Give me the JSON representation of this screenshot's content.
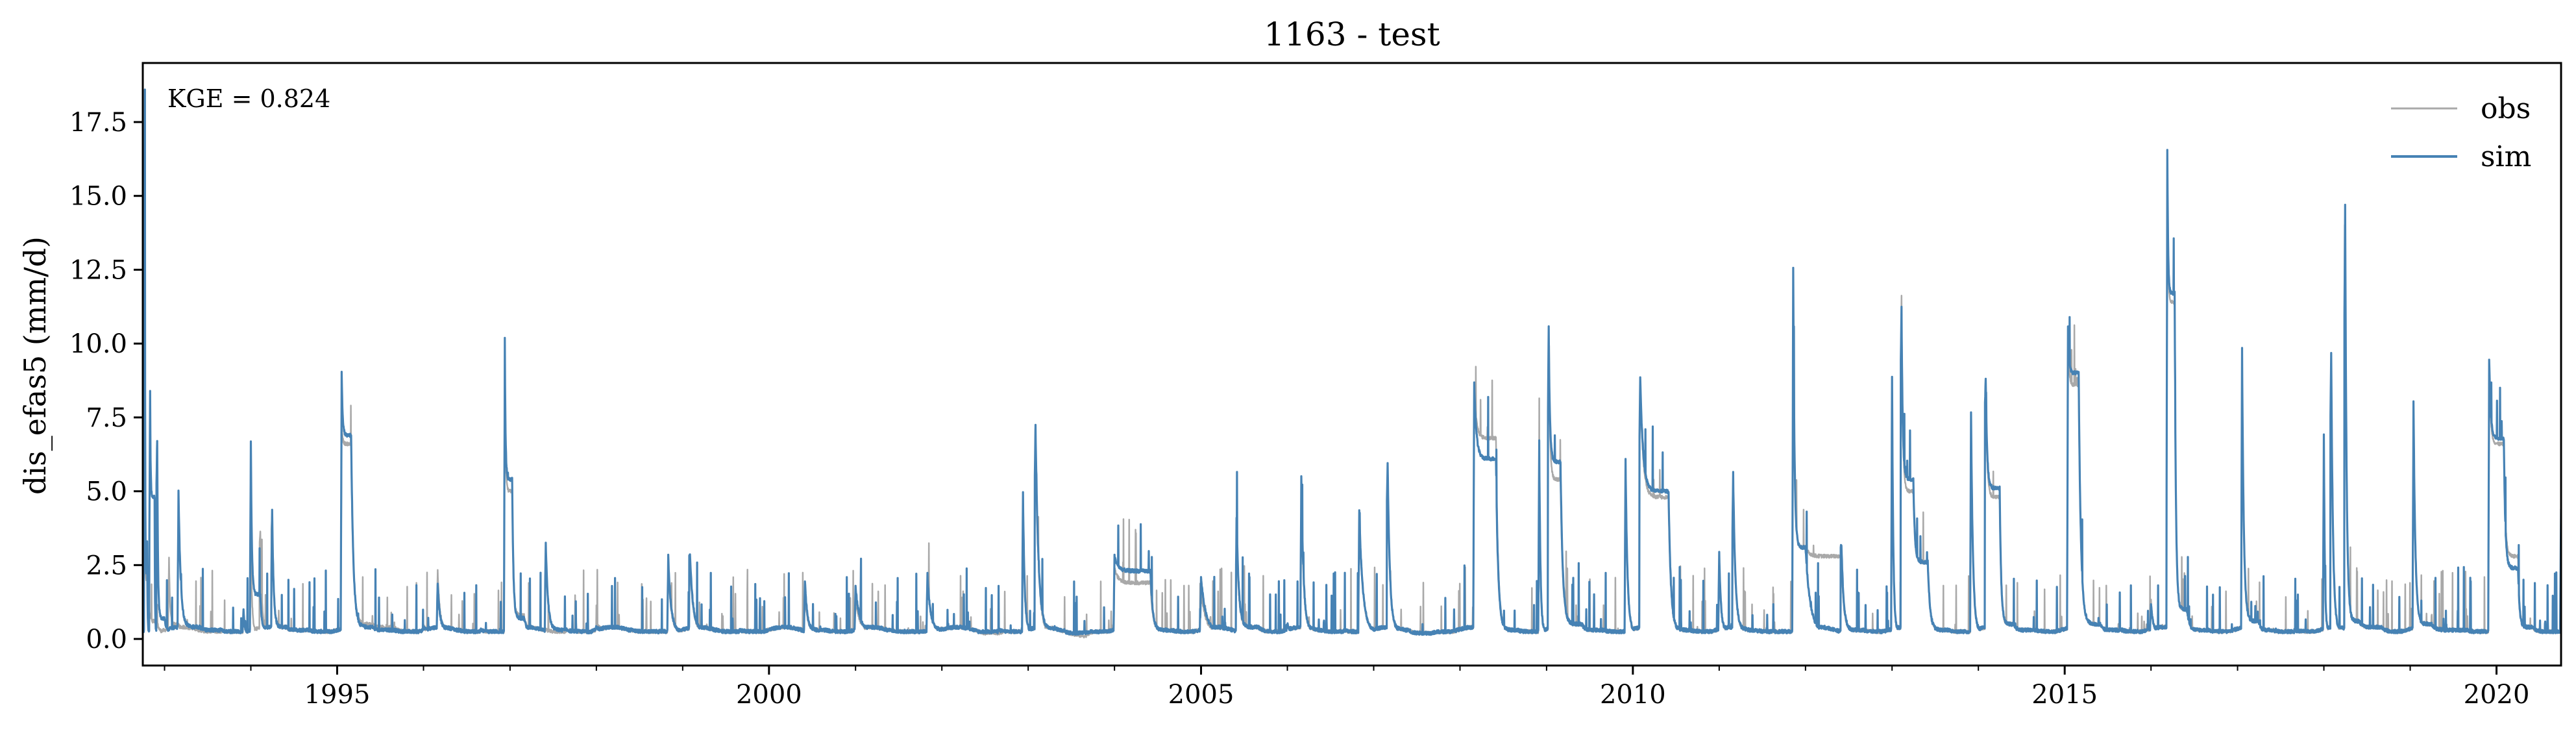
{
  "chart_data": {
    "type": "line",
    "title": "1163 - test",
    "xlabel": "",
    "ylabel": "dis_efas5 (mm/d)",
    "xlim": [
      "1992-10-01",
      "2020-09-30"
    ],
    "ylim": [
      -0.9,
      19.5
    ],
    "x_ticks": [
      {
        "date": "1995-01-01",
        "label": "1995"
      },
      {
        "date": "2000-01-01",
        "label": "2000"
      },
      {
        "date": "2005-01-01",
        "label": "2005"
      },
      {
        "date": "2010-01-01",
        "label": "2010"
      },
      {
        "date": "2015-01-01",
        "label": "2015"
      },
      {
        "date": "2020-01-01",
        "label": "2020"
      }
    ],
    "y_ticks": [
      {
        "value": 0.0,
        "label": "0.0"
      },
      {
        "value": 2.5,
        "label": "2.5"
      },
      {
        "value": 5.0,
        "label": "5.0"
      },
      {
        "value": 7.5,
        "label": "7.5"
      },
      {
        "value": 10.0,
        "label": "10.0"
      },
      {
        "value": 12.5,
        "label": "12.5"
      },
      {
        "value": 15.0,
        "label": "15.0"
      },
      {
        "value": 17.5,
        "label": "17.5"
      }
    ],
    "annotation": "KGE = 0.824",
    "legend_position": "top-right",
    "grid": false,
    "series": [
      {
        "name": "obs",
        "color": "#a9a9a9",
        "points": [
          [
            "1992-10-01",
            1.8
          ],
          [
            "1992-10-10",
            11.0
          ],
          [
            "1992-10-20",
            2.0
          ],
          [
            "1992-11-01",
            0.9
          ],
          [
            "1992-12-01",
            0.6
          ],
          [
            "1993-01-20",
            2.7
          ],
          [
            "1993-03-01",
            0.5
          ],
          [
            "1993-06-01",
            0.3
          ],
          [
            "1993-09-01",
            0.3
          ],
          [
            "1993-12-01",
            0.8
          ],
          [
            "1994-01-01",
            3.2
          ],
          [
            "1994-02-10",
            3.6
          ],
          [
            "1994-04-01",
            4.2
          ],
          [
            "1994-06-01",
            0.4
          ],
          [
            "1994-09-01",
            0.3
          ],
          [
            "1995-01-20",
            7.2
          ],
          [
            "1995-03-01",
            6.6
          ],
          [
            "1995-06-01",
            0.5
          ],
          [
            "1995-09-01",
            0.4
          ],
          [
            "1996-01-01",
            0.5
          ],
          [
            "1996-03-01",
            2.3
          ],
          [
            "1996-06-01",
            0.3
          ],
          [
            "1996-09-01",
            0.3
          ],
          [
            "1996-12-10",
            9.5
          ],
          [
            "1997-01-10",
            5.0
          ],
          [
            "1997-03-01",
            0.8
          ],
          [
            "1997-06-01",
            0.3
          ],
          [
            "1997-09-01",
            0.3
          ],
          [
            "1998-01-01",
            0.5
          ],
          [
            "1998-06-01",
            0.3
          ],
          [
            "1998-11-01",
            2.4
          ],
          [
            "1999-02-01",
            2.6
          ],
          [
            "1999-06-01",
            0.3
          ],
          [
            "1999-09-01",
            0.3
          ],
          [
            "2000-01-01",
            0.3
          ],
          [
            "2000-06-01",
            1.6
          ],
          [
            "2000-09-01",
            0.3
          ],
          [
            "2001-01-01",
            1.4
          ],
          [
            "2001-06-01",
            0.3
          ],
          [
            "2001-11-01",
            2.2
          ],
          [
            "2002-03-01",
            0.3
          ],
          [
            "2002-09-01",
            0.2
          ],
          [
            "2002-12-10",
            4.8
          ],
          [
            "2003-02-01",
            7.0
          ],
          [
            "2003-06-01",
            0.2
          ],
          [
            "2003-09-01",
            0.1
          ],
          [
            "2004-01-01",
            2.4
          ],
          [
            "2004-06-01",
            1.9
          ],
          [
            "2004-09-01",
            0.3
          ],
          [
            "2005-01-01",
            1.6
          ],
          [
            "2005-06-01",
            3.4
          ],
          [
            "2005-09-01",
            0.4
          ],
          [
            "2006-01-01",
            0.5
          ],
          [
            "2006-03-01",
            5.3
          ],
          [
            "2006-06-01",
            0.3
          ],
          [
            "2006-09-01",
            0.3
          ],
          [
            "2006-11-01",
            4.1
          ],
          [
            "2007-03-01",
            5.8
          ],
          [
            "2007-06-01",
            0.3
          ],
          [
            "2007-09-01",
            0.2
          ],
          [
            "2008-03-01",
            8.5
          ],
          [
            "2008-06-01",
            6.8
          ],
          [
            "2008-09-01",
            0.3
          ],
          [
            "2008-12-01",
            6.0
          ],
          [
            "2009-01-10",
            10.2
          ],
          [
            "2009-03-01",
            5.4
          ],
          [
            "2009-06-01",
            0.5
          ],
          [
            "2009-09-01",
            0.3
          ],
          [
            "2009-12-01",
            5.8
          ],
          [
            "2010-02-01",
            8.6
          ],
          [
            "2010-06-01",
            4.8
          ],
          [
            "2010-09-01",
            0.3
          ],
          [
            "2011-01-01",
            2.8
          ],
          [
            "2011-03-01",
            5.3
          ],
          [
            "2011-06-01",
            0.3
          ],
          [
            "2011-11-10",
            12.4
          ],
          [
            "2012-01-01",
            3.1
          ],
          [
            "2012-06-01",
            2.8
          ],
          [
            "2012-09-01",
            0.3
          ],
          [
            "2013-01-01",
            8.5
          ],
          [
            "2013-02-10",
            11.6
          ],
          [
            "2013-04-01",
            5.0
          ],
          [
            "2013-06-01",
            2.6
          ],
          [
            "2013-09-01",
            0.3
          ],
          [
            "2013-12-01",
            7.6
          ],
          [
            "2014-02-01",
            8.6
          ],
          [
            "2014-04-01",
            4.8
          ],
          [
            "2014-06-01",
            0.5
          ],
          [
            "2014-09-01",
            0.3
          ],
          [
            "2015-01-15",
            10.3
          ],
          [
            "2015-03-01",
            8.6
          ],
          [
            "2015-06-01",
            0.5
          ],
          [
            "2015-09-01",
            0.3
          ],
          [
            "2016-01-01",
            1.3
          ],
          [
            "2016-03-10",
            16.3
          ],
          [
            "2016-04-10",
            11.4
          ],
          [
            "2016-06-01",
            1.0
          ],
          [
            "2016-09-01",
            0.3
          ],
          [
            "2017-01-20",
            9.6
          ],
          [
            "2017-04-01",
            0.6
          ],
          [
            "2017-06-01",
            0.3
          ],
          [
            "2017-09-01",
            0.3
          ],
          [
            "2018-01-01",
            6.7
          ],
          [
            "2018-02-01",
            9.4
          ],
          [
            "2018-04-01",
            14.4
          ],
          [
            "2018-06-01",
            0.6
          ],
          [
            "2018-09-01",
            0.4
          ],
          [
            "2019-01-15",
            7.8
          ],
          [
            "2019-04-01",
            0.5
          ],
          [
            "2019-09-01",
            0.3
          ],
          [
            "2019-12-01",
            9.2
          ],
          [
            "2020-02-01",
            6.6
          ],
          [
            "2020-04-01",
            2.8
          ],
          [
            "2020-06-01",
            0.4
          ],
          [
            "2020-09-30",
            0.4
          ]
        ]
      },
      {
        "name": "sim",
        "color": "#4682b4",
        "points": [
          [
            "1992-10-01",
            1.6
          ],
          [
            "1992-10-10",
            18.6
          ],
          [
            "1992-10-20",
            2.2
          ],
          [
            "1992-11-01",
            8.4
          ],
          [
            "1992-11-20",
            4.8
          ],
          [
            "1992-12-01",
            6.7
          ],
          [
            "1993-01-01",
            0.7
          ],
          [
            "1993-03-01",
            5.0
          ],
          [
            "1993-06-01",
            0.4
          ],
          [
            "1993-09-01",
            0.3
          ],
          [
            "1993-12-01",
            1.0
          ],
          [
            "1994-01-01",
            6.7
          ],
          [
            "1994-02-10",
            1.5
          ],
          [
            "1994-04-01",
            4.4
          ],
          [
            "1994-06-01",
            0.4
          ],
          [
            "1994-09-01",
            0.3
          ],
          [
            "1995-01-20",
            9.0
          ],
          [
            "1995-03-01",
            6.9
          ],
          [
            "1995-06-01",
            0.4
          ],
          [
            "1995-09-01",
            0.3
          ],
          [
            "1996-01-01",
            0.4
          ],
          [
            "1996-03-01",
            1.9
          ],
          [
            "1996-06-01",
            0.3
          ],
          [
            "1996-09-01",
            0.3
          ],
          [
            "1996-12-10",
            9.7
          ],
          [
            "1997-01-10",
            5.4
          ],
          [
            "1997-03-01",
            0.7
          ],
          [
            "1997-06-01",
            3.3
          ],
          [
            "1997-09-01",
            0.3
          ],
          [
            "1998-01-01",
            0.4
          ],
          [
            "1998-06-01",
            0.3
          ],
          [
            "1998-11-01",
            2.8
          ],
          [
            "1999-02-01",
            2.9
          ],
          [
            "1999-06-01",
            0.3
          ],
          [
            "1999-09-01",
            0.3
          ],
          [
            "2000-01-01",
            0.3
          ],
          [
            "2000-06-01",
            2.0
          ],
          [
            "2000-09-01",
            0.3
          ],
          [
            "2001-01-01",
            1.8
          ],
          [
            "2001-06-01",
            0.3
          ],
          [
            "2001-11-01",
            2.2
          ],
          [
            "2002-03-01",
            0.3
          ],
          [
            "2002-09-01",
            0.3
          ],
          [
            "2002-12-10",
            5.0
          ],
          [
            "2003-02-01",
            7.2
          ],
          [
            "2003-06-01",
            0.3
          ],
          [
            "2003-09-01",
            0.2
          ],
          [
            "2004-01-01",
            2.8
          ],
          [
            "2004-06-01",
            2.3
          ],
          [
            "2004-09-01",
            0.3
          ],
          [
            "2005-01-01",
            2.1
          ],
          [
            "2005-06-01",
            3.9
          ],
          [
            "2005-09-01",
            0.4
          ],
          [
            "2006-01-01",
            0.5
          ],
          [
            "2006-03-01",
            5.5
          ],
          [
            "2006-06-01",
            0.3
          ],
          [
            "2006-09-01",
            0.3
          ],
          [
            "2006-11-01",
            4.3
          ],
          [
            "2007-03-01",
            6.0
          ],
          [
            "2007-06-01",
            0.3
          ],
          [
            "2007-09-01",
            0.2
          ],
          [
            "2008-03-01",
            8.7
          ],
          [
            "2008-06-01",
            6.1
          ],
          [
            "2008-09-01",
            0.3
          ],
          [
            "2008-12-01",
            6.7
          ],
          [
            "2009-01-10",
            10.6
          ],
          [
            "2009-03-01",
            6.0
          ],
          [
            "2009-06-01",
            0.5
          ],
          [
            "2009-09-01",
            0.3
          ],
          [
            "2009-12-01",
            6.1
          ],
          [
            "2010-02-01",
            8.9
          ],
          [
            "2010-06-01",
            5.0
          ],
          [
            "2010-09-01",
            0.3
          ],
          [
            "2011-01-01",
            2.9
          ],
          [
            "2011-03-01",
            5.6
          ],
          [
            "2011-06-01",
            0.3
          ],
          [
            "2011-11-10",
            12.6
          ],
          [
            "2012-01-01",
            3.1
          ],
          [
            "2012-06-01",
            3.2
          ],
          [
            "2012-09-01",
            0.3
          ],
          [
            "2013-01-01",
            8.9
          ],
          [
            "2013-02-10",
            11.2
          ],
          [
            "2013-04-01",
            5.4
          ],
          [
            "2013-06-01",
            2.6
          ],
          [
            "2013-09-01",
            0.3
          ],
          [
            "2013-12-01",
            7.7
          ],
          [
            "2014-02-01",
            8.8
          ],
          [
            "2014-04-01",
            5.1
          ],
          [
            "2014-06-01",
            0.5
          ],
          [
            "2014-09-01",
            0.3
          ],
          [
            "2015-01-15",
            10.6
          ],
          [
            "2015-03-01",
            9.0
          ],
          [
            "2015-06-01",
            0.5
          ],
          [
            "2015-09-01",
            0.3
          ],
          [
            "2016-01-01",
            1.2
          ],
          [
            "2016-03-10",
            16.6
          ],
          [
            "2016-04-10",
            11.7
          ],
          [
            "2016-06-01",
            1.0
          ],
          [
            "2016-09-01",
            0.3
          ],
          [
            "2017-01-20",
            9.9
          ],
          [
            "2017-04-01",
            0.6
          ],
          [
            "2017-06-01",
            0.3
          ],
          [
            "2017-09-01",
            0.3
          ],
          [
            "2018-01-01",
            6.9
          ],
          [
            "2018-02-01",
            9.7
          ],
          [
            "2018-04-01",
            14.7
          ],
          [
            "2018-06-01",
            0.6
          ],
          [
            "2018-09-01",
            0.4
          ],
          [
            "2019-01-15",
            8.0
          ],
          [
            "2019-04-01",
            0.5
          ],
          [
            "2019-09-01",
            0.3
          ],
          [
            "2019-12-01",
            9.5
          ],
          [
            "2020-02-01",
            6.8
          ],
          [
            "2020-04-01",
            2.4
          ],
          [
            "2020-06-01",
            0.4
          ],
          [
            "2020-09-30",
            4.4
          ]
        ]
      }
    ]
  }
}
